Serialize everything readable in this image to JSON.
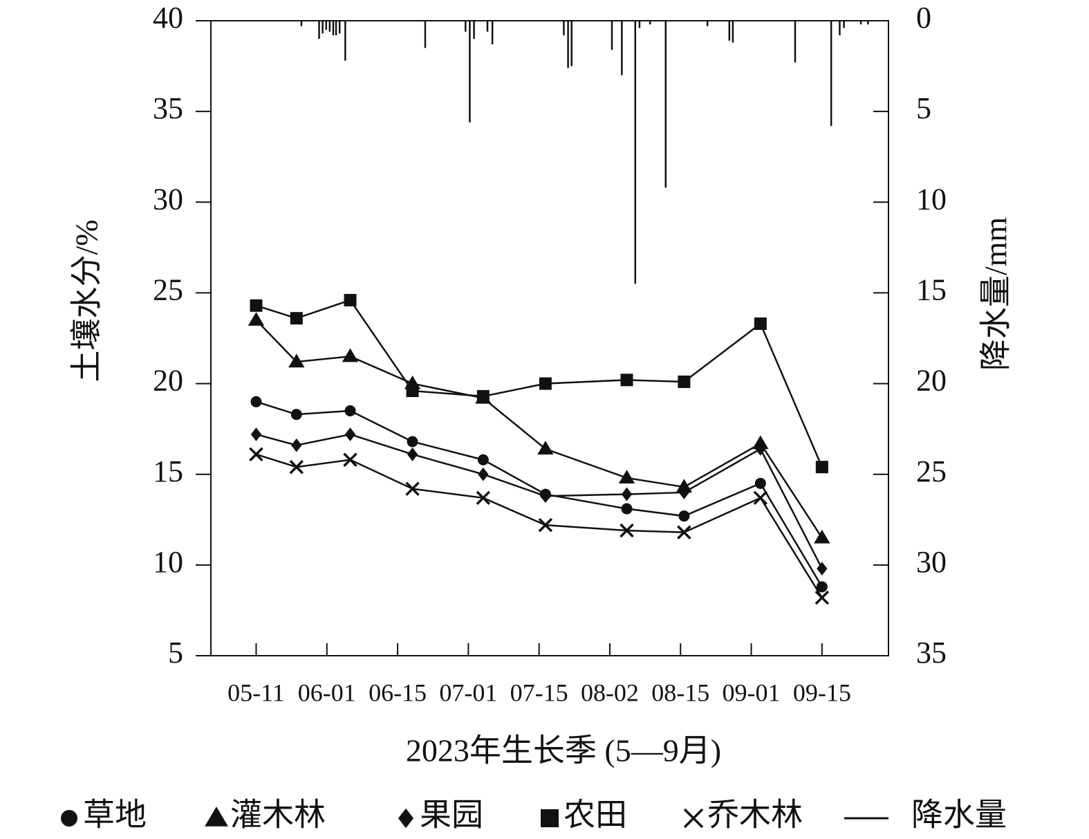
{
  "chart_data": {
    "type": "line",
    "xlabel": "2023年生长季 (5—9月)",
    "ylabel": "土壤水分/%",
    "y2label": "降水量/mm",
    "x": [
      0,
      0.57,
      1.33,
      2.21,
      3.21,
      4.09,
      5.24,
      6.05,
      7.13,
      8.0
    ],
    "xlim": [
      -0.64,
      8.94
    ],
    "xticks": [
      {
        "value": 0,
        "label": "05-11"
      },
      {
        "value": 1,
        "label": "06-01"
      },
      {
        "value": 2,
        "label": "06-15"
      },
      {
        "value": 3,
        "label": "07-01"
      },
      {
        "value": 4,
        "label": "07-15"
      },
      {
        "value": 5,
        "label": "08-02"
      },
      {
        "value": 6,
        "label": "08-15"
      },
      {
        "value": 7,
        "label": "09-01"
      },
      {
        "value": 8,
        "label": "09-15"
      }
    ],
    "ylim": [
      5,
      40
    ],
    "yticks": [
      5,
      10,
      15,
      20,
      25,
      30,
      35,
      40
    ],
    "y2lim": [
      35,
      0
    ],
    "y2ticks": [
      0,
      5,
      10,
      15,
      20,
      25,
      30,
      35
    ],
    "series": [
      {
        "name": "草地",
        "color": "#111111",
        "marker": "circle",
        "values": [
          19.0,
          18.3,
          18.5,
          16.8,
          15.8,
          13.9,
          13.1,
          12.7,
          14.5,
          8.8
        ]
      },
      {
        "name": "灌木林",
        "color": "#111111",
        "marker": "triangle",
        "values": [
          23.5,
          21.2,
          21.5,
          20.0,
          19.2,
          16.4,
          14.8,
          14.3,
          16.7,
          11.5
        ]
      },
      {
        "name": "果园",
        "color": "#111111",
        "marker": "diamond",
        "values": [
          17.2,
          16.6,
          17.2,
          16.1,
          15.0,
          13.8,
          13.9,
          14.0,
          16.4,
          9.8
        ]
      },
      {
        "name": "农田",
        "color": "#111111",
        "marker": "square",
        "values": [
          24.3,
          23.6,
          24.6,
          19.6,
          19.3,
          20.0,
          20.2,
          20.1,
          23.3,
          15.4
        ]
      },
      {
        "name": "乔木林",
        "color": "#111111",
        "marker": "x",
        "values": [
          16.1,
          15.4,
          15.8,
          14.2,
          13.7,
          12.2,
          11.9,
          11.8,
          13.7,
          8.2
        ]
      },
      {
        "name": "降水量",
        "color": "#111111",
        "type": "bar",
        "axis": "y2",
        "x": [
          0.64,
          0.89,
          0.94,
          0.99,
          1.04,
          1.09,
          1.13,
          1.18,
          1.26,
          2.39,
          2.96,
          3.02,
          3.08,
          3.27,
          3.34,
          4.35,
          4.41,
          4.46,
          5.03,
          5.17,
          5.36,
          5.42,
          5.57,
          5.79,
          6.38,
          6.69,
          6.74,
          7.62,
          8.13,
          8.25,
          8.31,
          8.55,
          8.65
        ],
        "values": [
          0.3,
          1.0,
          0.7,
          0.5,
          0.6,
          0.8,
          0.8,
          0.7,
          2.2,
          1.5,
          0.6,
          5.6,
          1.0,
          0.6,
          1.3,
          0.8,
          2.6,
          2.5,
          1.6,
          3.0,
          14.5,
          0.4,
          0.2,
          9.2,
          0.3,
          1.1,
          1.2,
          2.3,
          5.8,
          0.8,
          0.4,
          0.2,
          0.2
        ]
      }
    ]
  }
}
